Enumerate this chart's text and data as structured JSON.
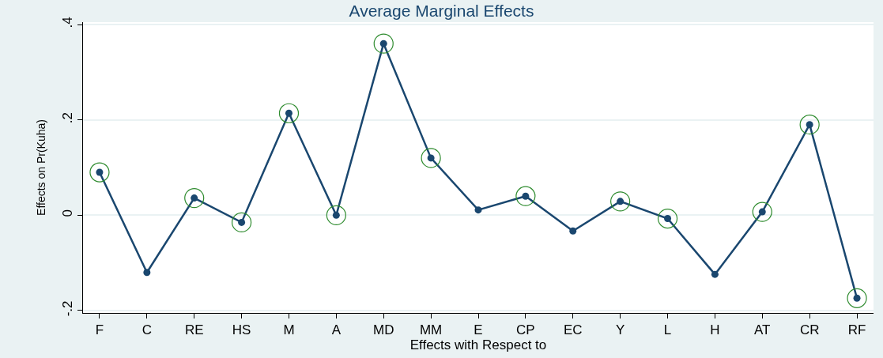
{
  "chart_data": {
    "type": "line",
    "title": "Average Marginal Effects",
    "xlabel": "Effects with Respect to",
    "ylabel": "Effects on Pr(Kuha)",
    "categories": [
      "F",
      "C",
      "RE",
      "HS",
      "M",
      "A",
      "MD",
      "MM",
      "E",
      "CP",
      "EC",
      "Y",
      "L",
      "H",
      "AT",
      "CR",
      "RF"
    ],
    "series": [
      {
        "color": "#1a476f",
        "marker": "circle",
        "values": [
          0.09,
          -0.12,
          0.036,
          -0.015,
          0.214,
          0.0,
          0.36,
          0.12,
          0.011,
          0.04,
          -0.033,
          0.029,
          -0.007,
          -0.124,
          0.007,
          0.19,
          -0.174
        ]
      },
      {
        "type": "scatter",
        "color": "#2e8b2e",
        "marker": "circle-open",
        "values": [
          0.09,
          null,
          0.036,
          -0.015,
          0.214,
          0.0,
          0.36,
          0.12,
          null,
          0.04,
          null,
          0.029,
          -0.007,
          null,
          0.007,
          0.19,
          -0.174
        ]
      }
    ],
    "ylim": [
      -0.205,
      0.405
    ],
    "yticks": [
      {
        "value": -0.2,
        "label": "-.2"
      },
      {
        "value": 0,
        "label": "0"
      },
      {
        "value": 0.2,
        "label": ".2"
      },
      {
        "value": 0.4,
        "label": ".4"
      }
    ],
    "grid": "y"
  }
}
